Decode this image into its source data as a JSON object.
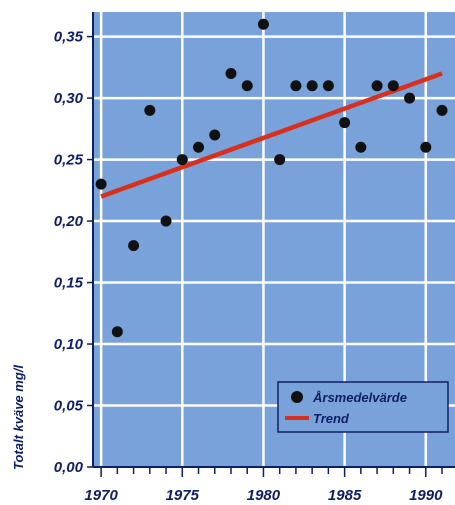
{
  "chart_data": {
    "type": "scatter",
    "ylabel": "Totalt kväve mg/l",
    "xlabel": "",
    "xlim": [
      1969.5,
      1991.8
    ],
    "ylim": [
      0,
      0.37
    ],
    "x_ticks": [
      "1970",
      "1975",
      "1980",
      "1985",
      "1990"
    ],
    "y_ticks": [
      "0,00",
      "0,05",
      "0,10",
      "0,15",
      "0,20",
      "0,25",
      "0,30",
      "0,35"
    ],
    "grid": true,
    "legend": "bottom-right",
    "series": [
      {
        "name": "Årsmedelvärde",
        "kind": "scatter",
        "color": "#111111",
        "x": [
          1970,
          1971,
          1972,
          1973,
          1974,
          1975,
          1976,
          1977,
          1978,
          1979,
          1980,
          1981,
          1982,
          1983,
          1984,
          1985,
          1986,
          1987,
          1988,
          1989,
          1990,
          1991
        ],
        "y": [
          0.23,
          0.11,
          0.18,
          0.29,
          0.2,
          0.25,
          0.26,
          0.27,
          0.32,
          0.31,
          0.36,
          0.25,
          0.31,
          0.31,
          0.31,
          0.28,
          0.26,
          0.31,
          0.31,
          0.3,
          0.26,
          0.29
        ]
      },
      {
        "name": "Trend",
        "kind": "line",
        "color": "#d8301c",
        "x": [
          1970,
          1991
        ],
        "y": [
          0.22,
          0.32
        ]
      }
    ],
    "colors": {
      "plot_bg": "#7aa2da",
      "grid": "#ffffff",
      "axis": "#0f1f66"
    }
  }
}
